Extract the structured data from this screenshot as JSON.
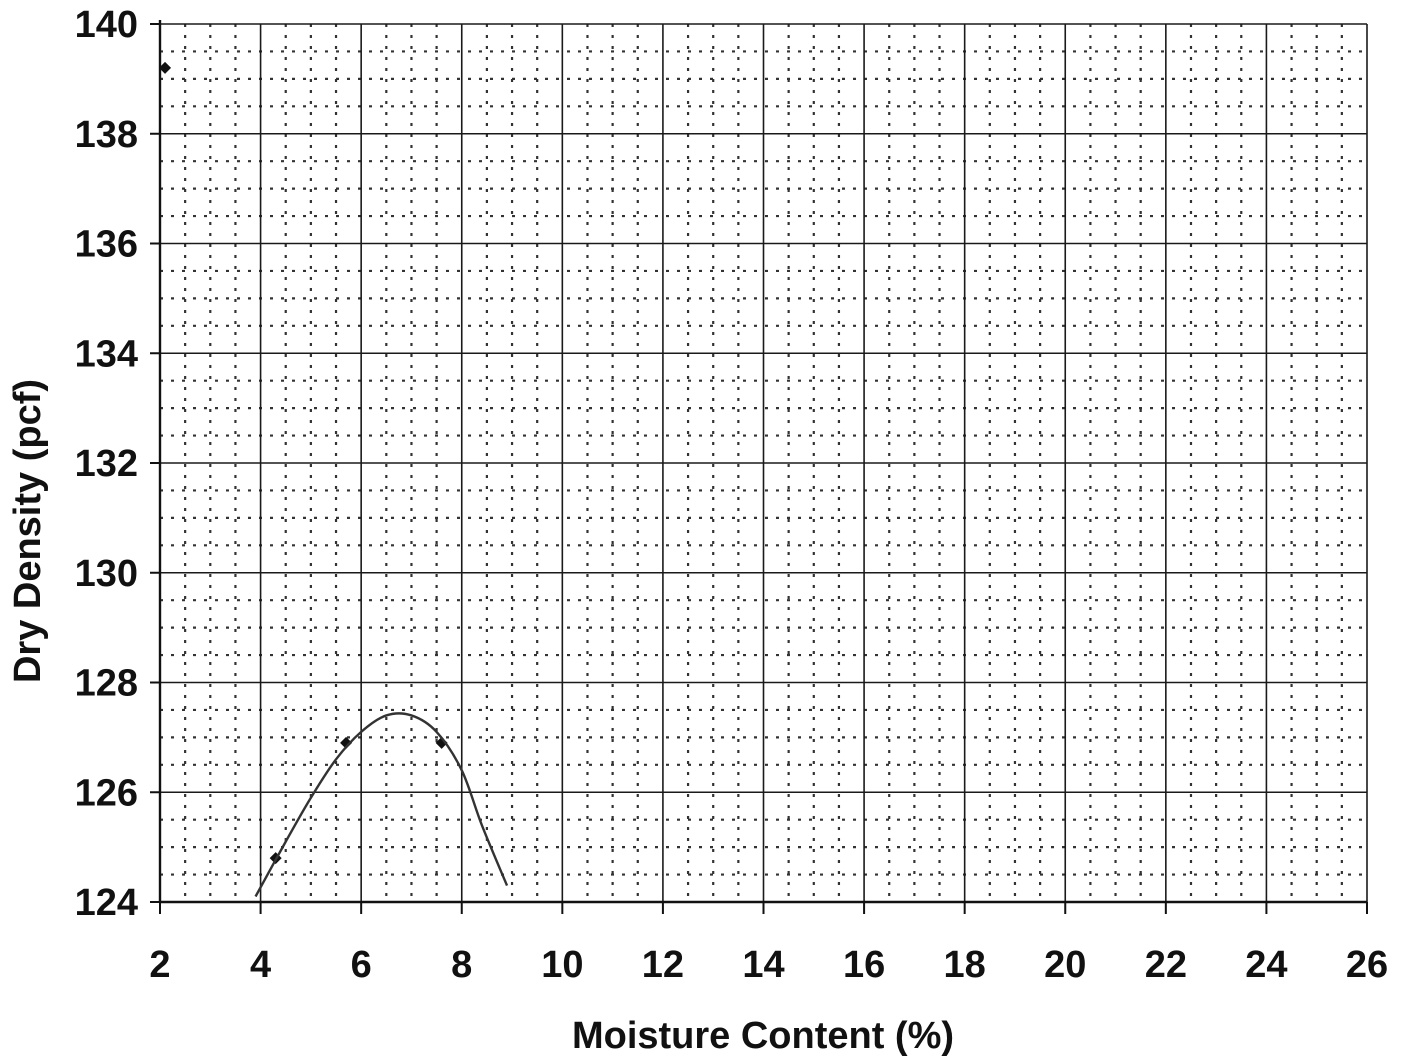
{
  "chart_data": {
    "type": "scatter",
    "title": "",
    "xlabel": "Moisture Content (%)",
    "ylabel": "Dry Density (pcf)",
    "xlim": [
      2,
      26
    ],
    "ylim": [
      124,
      140
    ],
    "x_ticks": [
      "2",
      "4",
      "6",
      "8",
      "10",
      "12",
      "14",
      "16",
      "18",
      "20",
      "22",
      "24",
      "26"
    ],
    "y_ticks": [
      "124",
      "126",
      "128",
      "130",
      "132",
      "134",
      "136",
      "138",
      "140"
    ],
    "grid": {
      "major": true,
      "minor_dotted": true
    },
    "series": [
      {
        "kind": "points",
        "points": [
          {
            "x": 2.1,
            "y": 139.2
          },
          {
            "x": 4.3,
            "y": 124.8
          },
          {
            "x": 5.7,
            "y": 126.9
          },
          {
            "x": 7.6,
            "y": 126.9
          }
        ]
      },
      {
        "kind": "curve",
        "points": [
          {
            "x": 3.9,
            "y": 124.1
          },
          {
            "x": 4.5,
            "y": 125.1
          },
          {
            "x": 5.0,
            "y": 125.9
          },
          {
            "x": 5.5,
            "y": 126.6
          },
          {
            "x": 6.0,
            "y": 127.1
          },
          {
            "x": 6.5,
            "y": 127.4
          },
          {
            "x": 7.0,
            "y": 127.4
          },
          {
            "x": 7.5,
            "y": 127.1
          },
          {
            "x": 8.0,
            "y": 126.4
          },
          {
            "x": 8.4,
            "y": 125.4
          },
          {
            "x": 8.9,
            "y": 124.3
          }
        ]
      }
    ]
  },
  "colors": {
    "grid_major": "#1a1a1a",
    "grid_minor": "#333333",
    "marker": "#111111",
    "curve": "#333333"
  }
}
